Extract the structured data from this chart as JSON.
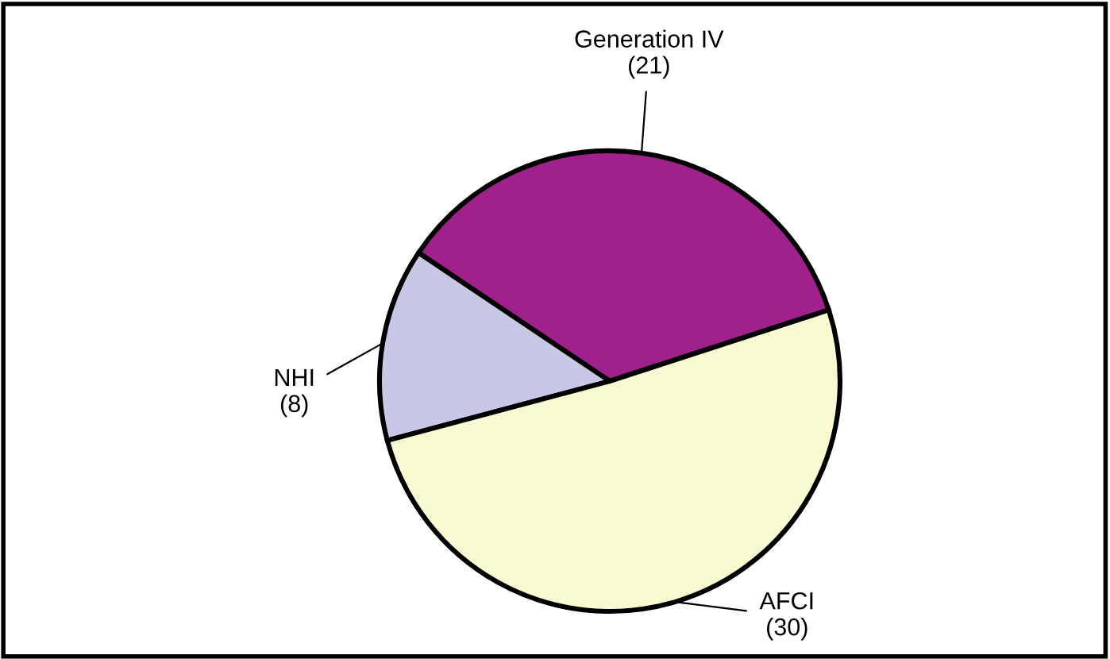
{
  "chart_data": {
    "type": "pie",
    "categories": [
      "Generation IV",
      "NHI",
      "AFCI"
    ],
    "values": [
      21,
      8,
      30
    ],
    "colors": [
      "#a0208c",
      "#c8c8e6",
      "#fafad2"
    ],
    "value_labels": [
      "(21)",
      "(8)",
      "(30)"
    ]
  }
}
